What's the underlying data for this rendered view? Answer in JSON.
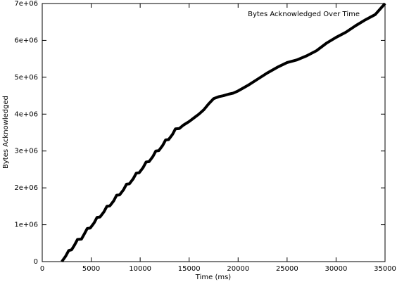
{
  "chart_data": {
    "type": "line",
    "x_label": "Time (ms)",
    "y_label": "Bytes Acknowledged",
    "x": [
      2000,
      2400,
      2700,
      3000,
      3300,
      3600,
      4000,
      4300,
      4600,
      4900,
      5300,
      5600,
      5900,
      6300,
      6600,
      6900,
      7300,
      7600,
      7900,
      8300,
      8600,
      8900,
      9300,
      9600,
      9900,
      10300,
      10600,
      10900,
      11300,
      11600,
      11900,
      12300,
      12600,
      12900,
      13300,
      13600,
      14000,
      14400,
      15000,
      15500,
      16000,
      16500,
      17000,
      17500,
      18000,
      18500,
      19000,
      19500,
      20000,
      21000,
      22000,
      23000,
      24000,
      25000,
      26000,
      27000,
      28000,
      29000,
      30000,
      31000,
      32000,
      33000,
      34000,
      35000
    ],
    "series": [
      {
        "name": "Bytes Acknowledged Over Time",
        "color": "#000000",
        "values": [
          0,
          150000,
          300000,
          320000,
          450000,
          600000,
          610000,
          750000,
          900000,
          910000,
          1050000,
          1200000,
          1210000,
          1350000,
          1500000,
          1510000,
          1650000,
          1800000,
          1810000,
          1950000,
          2100000,
          2110000,
          2250000,
          2400000,
          2410000,
          2550000,
          2700000,
          2710000,
          2850000,
          3000000,
          3010000,
          3150000,
          3300000,
          3310000,
          3450000,
          3600000,
          3610000,
          3700000,
          3800000,
          3900000,
          4000000,
          4120000,
          4280000,
          4420000,
          4470000,
          4500000,
          4540000,
          4570000,
          4630000,
          4780000,
          4950000,
          5120000,
          5270000,
          5400000,
          5470000,
          5580000,
          5720000,
          5920000,
          6080000,
          6220000,
          6400000,
          6560000,
          6700000,
          7000000
        ]
      }
    ],
    "xlim": [
      0,
      35000
    ],
    "xticks": [
      0,
      5000,
      10000,
      15000,
      20000,
      25000,
      30000,
      35000
    ],
    "ylim": [
      0,
      7000000
    ],
    "yticks": [
      0,
      {
        "value": 1000000,
        "label": "1e+06"
      },
      {
        "value": 2000000,
        "label": "2e+06"
      },
      {
        "value": 3000000,
        "label": "3e+06"
      },
      {
        "value": 4000000,
        "label": "4e+06"
      },
      {
        "value": 5000000,
        "label": "5e+06"
      },
      {
        "value": 6000000,
        "label": "6e+06"
      },
      {
        "value": 7000000,
        "label": "7e+06"
      }
    ],
    "legend": "top-right"
  }
}
